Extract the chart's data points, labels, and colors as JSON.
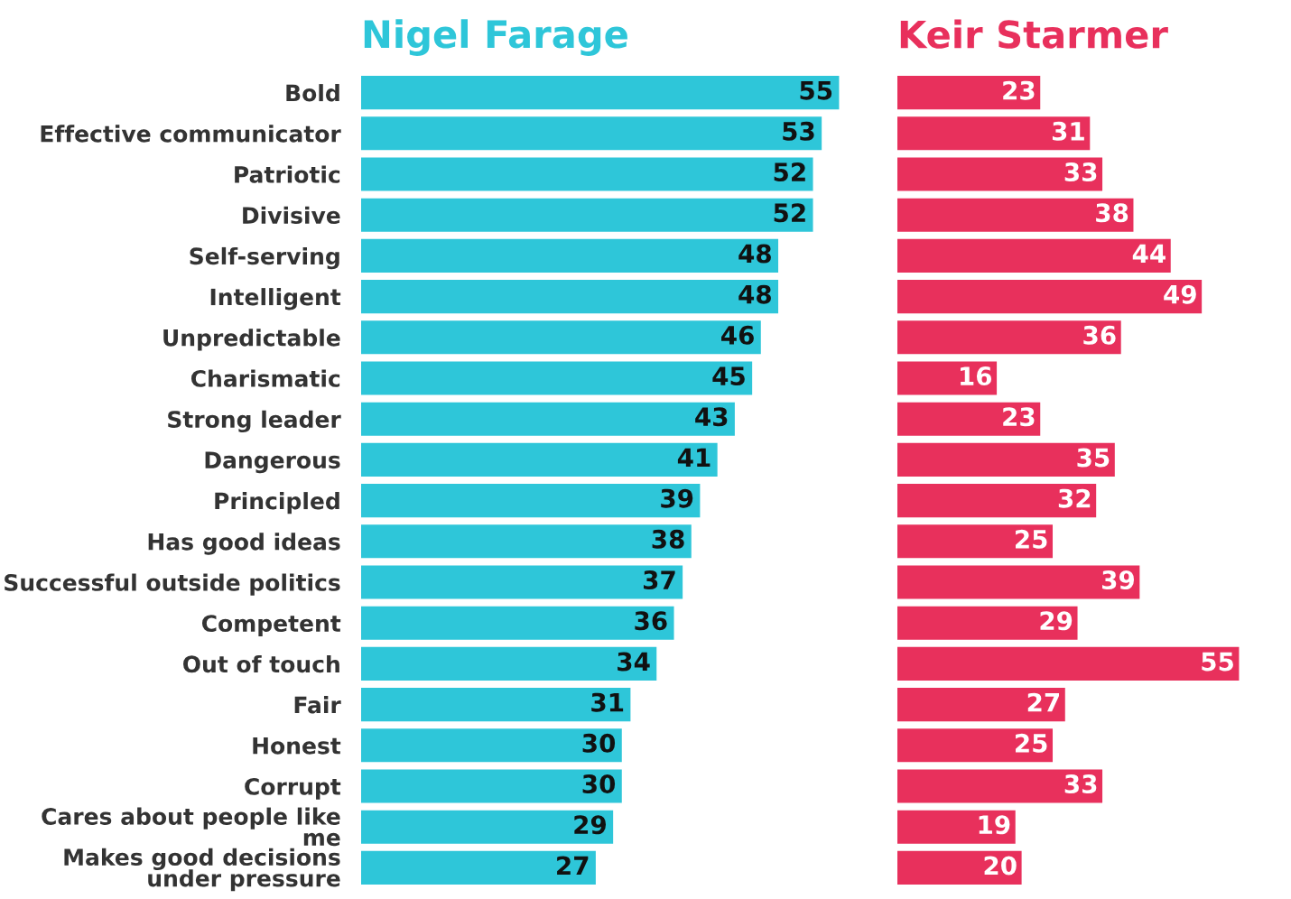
{
  "chart_data": [
    {
      "type": "bar",
      "orientation": "horizontal",
      "title": "Nigel Farage",
      "data_labels": true,
      "grid": false,
      "legend": false,
      "tick_labels": "y",
      "categories": [
        "Bold",
        "Effective communicator",
        "Patriotic",
        "Divisive",
        "Self-serving",
        "Intelligent",
        "Unpredictable",
        "Charismatic",
        "Strong leader",
        "Dangerous",
        "Principled",
        "Has good ideas",
        "Successful outside politics",
        "Competent",
        "Out of touch",
        "Fair",
        "Honest",
        "Corrupt",
        "Cares about people like me",
        "Makes good decisions under pressure"
      ],
      "series": [
        {
          "color": "#2ec6d9",
          "values": [
            55,
            53,
            52,
            52,
            48,
            48,
            46,
            45,
            43,
            41,
            39,
            38,
            37,
            36,
            34,
            31,
            30,
            30,
            29,
            27
          ]
        }
      ]
    },
    {
      "type": "bar",
      "orientation": "horizontal",
      "title": "Keir Starmer",
      "data_labels": true,
      "grid": false,
      "legend": false,
      "tick_labels": false,
      "categories": [
        null,
        null,
        null,
        null,
        null,
        null,
        null,
        null,
        null,
        null,
        null,
        null,
        null,
        null,
        null,
        null,
        null,
        null,
        null,
        null
      ],
      "series": [
        {
          "color": "#e8305c",
          "values": [
            23,
            31,
            33,
            38,
            44,
            49,
            36,
            16,
            23,
            35,
            32,
            25,
            39,
            29,
            55,
            27,
            25,
            33,
            19,
            20
          ]
        }
      ]
    }
  ]
}
